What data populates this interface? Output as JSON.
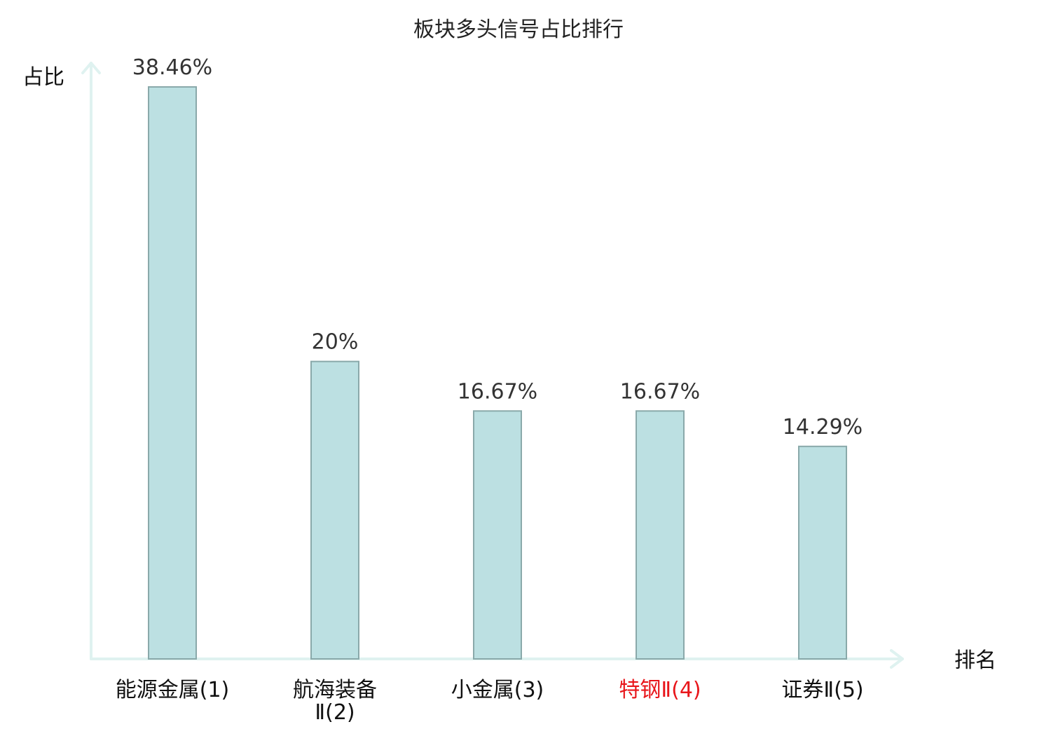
{
  "chart_data": {
    "type": "bar",
    "title": "板块多头信号占比排行",
    "ylabel": "占比",
    "xlabel": "排名",
    "categories": [
      "能源金属(1)",
      "航海装备Ⅱ(2)",
      "小金属(3)",
      "特钢Ⅱ(4)",
      "证券Ⅱ(5)"
    ],
    "category_lines": [
      [
        "能源金属(1)"
      ],
      [
        "航海装备",
        "Ⅱ(2)"
      ],
      [
        "小金属(3)"
      ],
      [
        "特钢Ⅱ(4)"
      ],
      [
        "证券Ⅱ(5)"
      ]
    ],
    "values": [
      38.46,
      20,
      16.67,
      16.67,
      14.29
    ],
    "value_labels": [
      "38.46%",
      "20%",
      "16.67%",
      "16.67%",
      "14.29%"
    ],
    "highlight_index": 3,
    "ylim": [
      0,
      40
    ],
    "grid": false,
    "colors": {
      "bar_fill": "#bce0e2",
      "bar_stroke": "#8aa9aa",
      "axis": "#dff2f0",
      "highlight_text": "#e8161b"
    }
  }
}
